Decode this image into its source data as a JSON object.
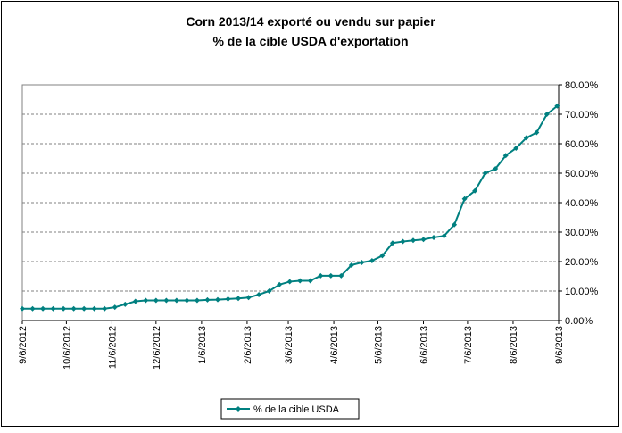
{
  "chart_data": {
    "type": "line",
    "title": "Corn 2013/14 exporté ou vendu sur papier",
    "subtitle": "% de la cible USDA d'exportation",
    "x": [
      "9/6/2012",
      "9/13/2012",
      "9/20/2012",
      "9/27/2012",
      "10/4/2012",
      "10/11/2012",
      "10/18/2012",
      "10/25/2012",
      "11/1/2012",
      "11/8/2012",
      "11/15/2012",
      "11/22/2012",
      "11/29/2012",
      "12/6/2012",
      "12/13/2012",
      "12/20/2012",
      "12/27/2012",
      "1/3/2013",
      "1/10/2013",
      "1/17/2013",
      "1/24/2013",
      "1/31/2013",
      "2/7/2013",
      "2/14/2013",
      "2/21/2013",
      "2/28/2013",
      "3/7/2013",
      "3/14/2013",
      "3/21/2013",
      "3/28/2013",
      "4/4/2013",
      "4/11/2013",
      "4/18/2013",
      "4/25/2013",
      "5/2/2013",
      "5/9/2013",
      "5/16/2013",
      "5/23/2013",
      "5/30/2013",
      "6/6/2013",
      "6/13/2013",
      "6/20/2013",
      "6/27/2013",
      "7/4/2013",
      "7/11/2013",
      "7/18/2013",
      "7/25/2013",
      "8/1/2013",
      "8/8/2013",
      "8/15/2013",
      "8/22/2013",
      "8/29/2013",
      "9/5/2013"
    ],
    "series": [
      {
        "name": "% de la cible USDA",
        "color": "#008080",
        "values": [
          4.0,
          4.0,
          4.0,
          4.0,
          4.0,
          4.0,
          4.0,
          4.0,
          4.0,
          4.5,
          5.5,
          6.5,
          6.8,
          6.8,
          6.8,
          6.8,
          6.8,
          6.8,
          7.0,
          7.1,
          7.3,
          7.5,
          7.8,
          8.8,
          10.0,
          12.2,
          13.2,
          13.5,
          13.5,
          15.2,
          15.2,
          15.2,
          18.8,
          19.7,
          20.3,
          22.0,
          26.3,
          26.8,
          27.2,
          27.5,
          28.2,
          28.7,
          32.5,
          41.3,
          44.0,
          50.0,
          51.5,
          56.0,
          58.5,
          62.0,
          63.8,
          70.0,
          72.8
        ]
      }
    ],
    "xlim": [
      "9/6/2012",
      "9/6/2013"
    ],
    "xticks": [
      "9/6/2012",
      "10/6/2012",
      "11/6/2012",
      "12/6/2012",
      "1/6/2013",
      "2/6/2013",
      "3/6/2013",
      "4/6/2013",
      "5/6/2013",
      "6/6/2013",
      "7/6/2013",
      "8/6/2013",
      "9/6/2013"
    ],
    "ylim": [
      0,
      80
    ],
    "yticks": [
      {
        "value": 0,
        "label": "0.00%"
      },
      {
        "value": 10,
        "label": "10.00%"
      },
      {
        "value": 20,
        "label": "20.00%"
      },
      {
        "value": 30,
        "label": "30.00%"
      },
      {
        "value": 40,
        "label": "40.00%"
      },
      {
        "value": 50,
        "label": "50.00%"
      },
      {
        "value": 60,
        "label": "60.00%"
      },
      {
        "value": 70,
        "label": "70.00%"
      },
      {
        "value": 80,
        "label": "80.00%"
      }
    ],
    "grid": true,
    "legend": "bottom"
  }
}
